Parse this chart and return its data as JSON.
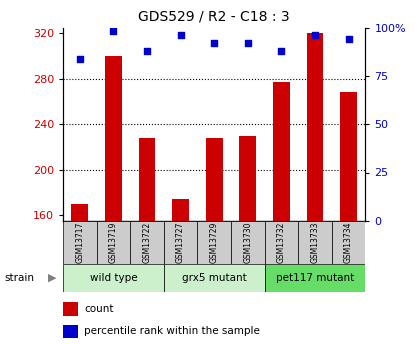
{
  "title": "GDS529 / R2 - C18 : 3",
  "samples": [
    "GSM13717",
    "GSM13719",
    "GSM13722",
    "GSM13727",
    "GSM13729",
    "GSM13730",
    "GSM13732",
    "GSM13733",
    "GSM13734"
  ],
  "counts": [
    170,
    300,
    228,
    174,
    228,
    230,
    277,
    320,
    268
  ],
  "percentile": [
    84,
    98,
    88,
    96,
    92,
    92,
    88,
    96,
    94
  ],
  "ylim_left": [
    155,
    325
  ],
  "ylim_right": [
    0,
    100
  ],
  "yticks_left": [
    160,
    200,
    240,
    280,
    320
  ],
  "yticks_right": [
    0,
    25,
    50,
    75,
    100
  ],
  "groups": [
    {
      "label": "wild type",
      "start": 0,
      "end": 3,
      "color": "#ccf0cc"
    },
    {
      "label": "grx5 mutant",
      "start": 3,
      "end": 6,
      "color": "#ccf0cc"
    },
    {
      "label": "pet117 mutant",
      "start": 6,
      "end": 9,
      "color": "#66dd66"
    }
  ],
  "bar_color": "#cc0000",
  "dot_color": "#0000cc",
  "bar_width": 0.5,
  "legend_count_label": "count",
  "legend_pct_label": "percentile rank within the sample",
  "strain_label": "strain",
  "tick_label_color_left": "#cc0000",
  "tick_label_color_right": "#0000cc",
  "sample_bg": "#cccccc",
  "grid_yticks": [
    200,
    240,
    280
  ]
}
